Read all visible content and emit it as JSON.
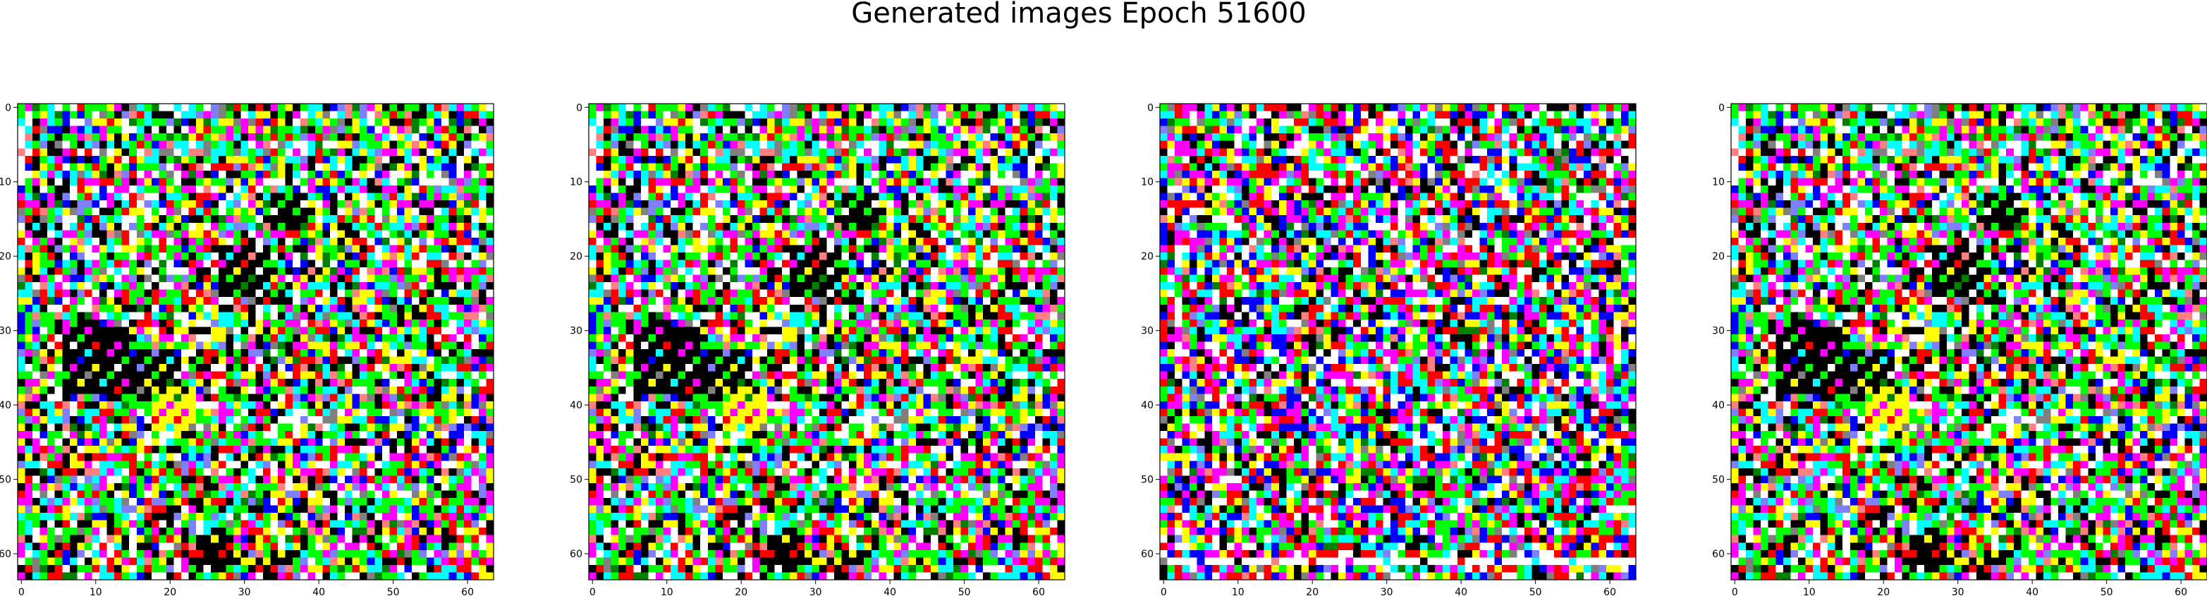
{
  "figure": {
    "suptitle": "Generated images Epoch 51600"
  },
  "palette": [
    "#000000",
    "#ff0000",
    "#00ff00",
    "#0000ff",
    "#ffff00",
    "#ff00ff",
    "#00ffff",
    "#ffffff",
    "#808080",
    "#008000",
    "#ff8080",
    "#8080ff"
  ],
  "chart_data": [
    {
      "type": "heatmap",
      "title": "",
      "xlabel": "",
      "ylabel": "",
      "grid": false,
      "legend": "none",
      "image_shape": [
        64,
        64
      ],
      "xlim": [
        -0.5,
        63.5
      ],
      "ylim": [
        63.5,
        -0.5
      ],
      "xticks": [
        0,
        10,
        20,
        30,
        40,
        50,
        60
      ],
      "yticks": [
        0,
        10,
        20,
        30,
        40,
        50,
        60
      ],
      "pixel_values": "64x64 RGB noise dominated by saturated black, red, green, blue, yellow, magenta, cyan and white pixels"
    },
    {
      "type": "heatmap",
      "title": "",
      "xlabel": "",
      "ylabel": "",
      "grid": false,
      "legend": "none",
      "image_shape": [
        64,
        64
      ],
      "xlim": [
        -0.5,
        63.5
      ],
      "ylim": [
        63.5,
        -0.5
      ],
      "xticks": [
        0,
        10,
        20,
        30,
        40,
        50,
        60
      ],
      "yticks": [
        0,
        10,
        20,
        30,
        40,
        50,
        60
      ],
      "pixel_values": "64x64 RGB noise, visually near-identical to image 1"
    },
    {
      "type": "heatmap",
      "title": "",
      "xlabel": "",
      "ylabel": "",
      "grid": false,
      "legend": "none",
      "image_shape": [
        64,
        64
      ],
      "xlim": [
        -0.5,
        63.5
      ],
      "ylim": [
        63.5,
        -0.5
      ],
      "xticks": [
        0,
        10,
        20,
        30,
        40,
        50,
        60
      ],
      "yticks": [
        0,
        10,
        20,
        30,
        40,
        50,
        60
      ],
      "pixel_values": "64x64 RGB noise with a different pattern, more blue/red/white, white band near the bottom"
    },
    {
      "type": "heatmap",
      "title": "",
      "xlabel": "",
      "ylabel": "",
      "grid": false,
      "legend": "none",
      "image_shape": [
        64,
        64
      ],
      "xlim": [
        -0.5,
        63.5
      ],
      "ylim": [
        63.5,
        -0.5
      ],
      "xticks": [
        0,
        10,
        20,
        30,
        40,
        50,
        60
      ],
      "yticks": [
        0,
        10,
        20,
        30,
        40,
        50,
        60
      ],
      "pixel_values": "64x64 RGB noise, visually near-identical to image 1"
    }
  ]
}
